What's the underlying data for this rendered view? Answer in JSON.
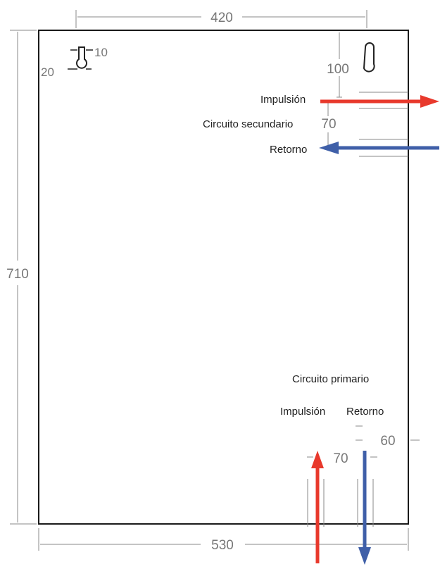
{
  "dimensions": {
    "top_width": "420",
    "height": "710",
    "bottom_width": "530",
    "top_offset": "100",
    "secondary_spacing": "70",
    "primary_spacing": "70",
    "right_offset": "60",
    "keyhole_width": "10",
    "keyhole_height": "20"
  },
  "secondary_circuit": {
    "title": "Circuito secundario",
    "supply_label": "Impulsión",
    "return_label": "Retorno"
  },
  "primary_circuit": {
    "title": "Circuito primario",
    "supply_label": "Impulsión",
    "return_label": "Retorno"
  },
  "colors": {
    "supply": "#e8392c",
    "return": "#3f5fa8",
    "outline": "#1a1a1a",
    "dimension_line": "#888888"
  },
  "icons": {
    "mounting_hole": "keyhole-icon"
  }
}
